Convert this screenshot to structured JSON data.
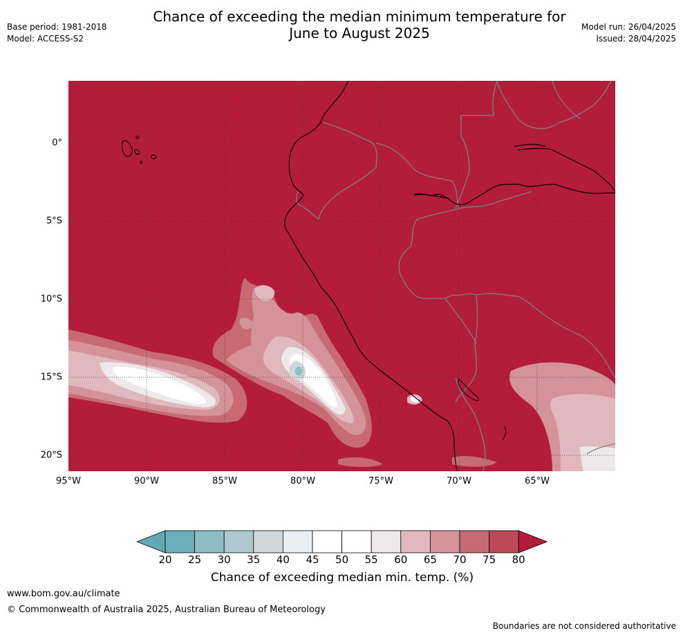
{
  "title_line1": "Chance of exceeding the median minimum temperature for",
  "title_line2": "June to August 2025",
  "meta_left": {
    "base_period": "Base period: 1981-2018",
    "model": "Model: ACCESS-S2"
  },
  "meta_right": {
    "model_run": "Model run: 26/04/2025",
    "issued": "Issued: 28/04/2025"
  },
  "map": {
    "lat_labels": [
      "0°",
      "5°S",
      "10°S",
      "15°S",
      "20°S"
    ],
    "lon_labels": [
      "95°W",
      "90°W",
      "85°W",
      "80°W",
      "75°W",
      "70°W",
      "65°W"
    ],
    "colors": {
      "background": "#b31c3a",
      "coast": "#000000",
      "border": "#808080",
      "grid": "#404040"
    }
  },
  "colorbar": {
    "ticks": [
      "20",
      "25",
      "30",
      "35",
      "40",
      "45",
      "50",
      "55",
      "60",
      "65",
      "70",
      "75",
      "80"
    ],
    "colors": [
      "#62a9b6",
      "#6aafbb",
      "#8cbcc4",
      "#adc8ce",
      "#ced8db",
      "#e9eff2",
      "#ffffff",
      "#ffffff",
      "#ede8ea",
      "#e0b8bd",
      "#d49399",
      "#c76a74",
      "#be4956",
      "#b31c3a"
    ],
    "title": "Chance of exceeding median min. temp. (%)"
  },
  "footer": {
    "website": "www.bom.gov.au/climate",
    "copyright": "© Commonwealth of Australia 2025, Australian Bureau of Meteorology",
    "boundaries": "Boundaries are not considered authoritative"
  }
}
